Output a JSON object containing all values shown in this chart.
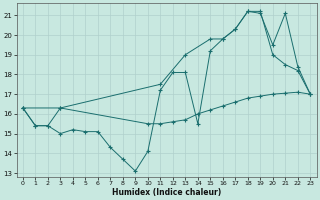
{
  "xlabel": "Humidex (Indice chaleur)",
  "bg_color": "#c8e8e0",
  "grid_color": "#b0d0cc",
  "line_color": "#1a6e6e",
  "xlim": [
    -0.5,
    23.5
  ],
  "ylim": [
    12.8,
    21.6
  ],
  "yticks": [
    13,
    14,
    15,
    16,
    17,
    18,
    19,
    20,
    21
  ],
  "xticks": [
    0,
    1,
    2,
    3,
    4,
    5,
    6,
    7,
    8,
    9,
    10,
    11,
    12,
    13,
    14,
    15,
    16,
    17,
    18,
    19,
    20,
    21,
    22,
    23
  ],
  "s1_x": [
    0,
    1,
    2,
    3,
    4,
    5,
    6,
    7,
    8,
    9,
    10,
    11,
    12,
    13,
    14,
    15,
    16,
    17,
    18,
    19,
    20,
    21,
    22,
    23
  ],
  "s1_y": [
    16.3,
    15.4,
    15.4,
    15.0,
    15.2,
    15.1,
    15.1,
    14.3,
    13.7,
    13.1,
    14.1,
    17.2,
    18.1,
    18.1,
    15.5,
    19.2,
    19.8,
    20.3,
    21.2,
    21.2,
    19.0,
    18.5,
    18.2,
    17.0
  ],
  "s2_x": [
    0,
    3,
    11,
    13,
    15,
    16,
    17,
    18,
    19,
    20,
    21,
    22,
    23
  ],
  "s2_y": [
    16.3,
    16.3,
    17.5,
    19.0,
    19.8,
    19.8,
    20.3,
    21.2,
    21.1,
    19.5,
    21.1,
    18.4,
    17.0
  ],
  "s3_x": [
    0,
    1,
    2,
    3,
    10,
    11,
    12,
    13,
    14,
    15,
    16,
    17,
    18,
    19,
    20,
    21,
    22,
    23
  ],
  "s3_y": [
    16.3,
    15.4,
    15.4,
    16.3,
    15.5,
    15.5,
    15.6,
    15.7,
    16.0,
    16.2,
    16.4,
    16.6,
    16.8,
    16.9,
    17.0,
    17.05,
    17.1,
    17.0
  ]
}
